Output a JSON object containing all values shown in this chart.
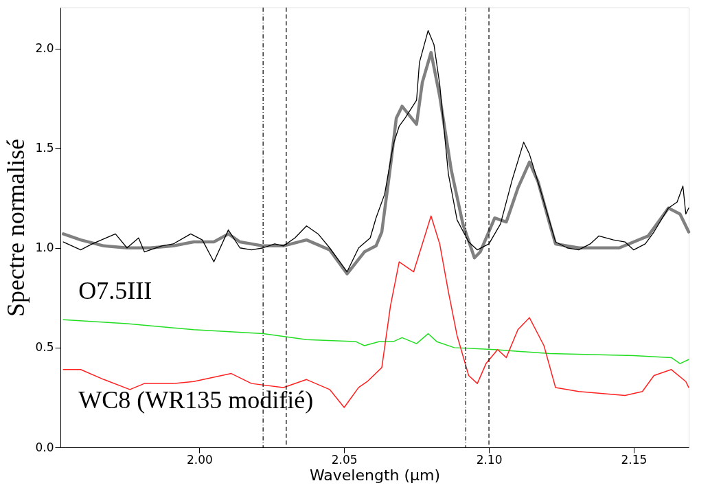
{
  "chart_data": {
    "type": "line",
    "xlabel": "Wavelength (µm)",
    "ylabel": "Spectre normalisé",
    "xlim": [
      1.952,
      2.169
    ],
    "ylim": [
      0,
      2.205
    ],
    "xticks": [
      {
        "value": 2.0,
        "label": "2.00"
      },
      2.05,
      {
        "value": 2.1,
        "label": "2.10"
      },
      2.15
    ],
    "yticks": [
      {
        "value": 0,
        "label": "0.0"
      },
      0.5,
      {
        "value": 1,
        "label": "1.0"
      },
      1.5,
      {
        "value": 2,
        "label": "2.0"
      }
    ],
    "grid": false,
    "line_style": "solid",
    "marker": "none",
    "series": [
      {
        "color": "#000000",
        "x": [
          1.953,
          1.959,
          1.963,
          1.971,
          1.975,
          1.979,
          1.981,
          1.987,
          1.991,
          1.997,
          2.001,
          2.005,
          2.01,
          2.014,
          2.018,
          2.022,
          2.026,
          2.029,
          2.033,
          2.037,
          2.041,
          2.045,
          2.049,
          2.051,
          2.055,
          2.059,
          2.061,
          2.064,
          2.067,
          2.069,
          2.071,
          2.075,
          2.076,
          2.079,
          2.081,
          2.083,
          2.086,
          2.089,
          2.093,
          2.096,
          2.1,
          2.104,
          2.108,
          2.112,
          2.114,
          2.118,
          2.123,
          2.127,
          2.131,
          2.135,
          2.138,
          2.143,
          2.147,
          2.15,
          2.154,
          2.157,
          2.162,
          2.165,
          2.167,
          2.168,
          2.169
        ],
        "values": [
          1.03,
          0.99,
          1.02,
          1.07,
          1.0,
          1.05,
          0.98,
          1.01,
          1.02,
          1.07,
          1.04,
          0.93,
          1.09,
          1.0,
          0.99,
          1.0,
          1.02,
          1.01,
          1.05,
          1.11,
          1.07,
          1.0,
          0.92,
          0.88,
          1.0,
          1.05,
          1.15,
          1.27,
          1.52,
          1.61,
          1.65,
          1.74,
          1.93,
          2.09,
          2.02,
          1.82,
          1.37,
          1.14,
          1.03,
          0.99,
          1.02,
          1.12,
          1.34,
          1.53,
          1.47,
          1.28,
          1.03,
          1.0,
          0.99,
          1.02,
          1.06,
          1.04,
          1.03,
          0.99,
          1.02,
          1.08,
          1.2,
          1.23,
          1.31,
          1.17,
          1.2
        ]
      },
      {
        "color": "#808080",
        "x": [
          1.953,
          1.959,
          1.967,
          1.975,
          1.983,
          1.991,
          1.998,
          2.005,
          2.01,
          2.014,
          2.022,
          2.029,
          2.037,
          2.045,
          2.051,
          2.057,
          2.061,
          2.063,
          2.066,
          2.068,
          2.07,
          2.075,
          2.077,
          2.08,
          2.083,
          2.087,
          2.091,
          2.095,
          2.097,
          2.102,
          2.106,
          2.11,
          2.114,
          2.117,
          2.121,
          2.123,
          2.131,
          2.145,
          2.155,
          2.162,
          2.166,
          2.169
        ],
        "values": [
          1.07,
          1.04,
          1.01,
          1.0,
          1.0,
          1.01,
          1.03,
          1.03,
          1.07,
          1.03,
          1.01,
          1.01,
          1.04,
          0.99,
          0.87,
          0.98,
          1.01,
          1.08,
          1.41,
          1.65,
          1.71,
          1.62,
          1.83,
          1.98,
          1.76,
          1.39,
          1.12,
          0.95,
          0.98,
          1.15,
          1.13,
          1.3,
          1.43,
          1.33,
          1.12,
          1.02,
          1.0,
          1.0,
          1.06,
          1.2,
          1.17,
          1.08
        ]
      },
      {
        "name": "O7.5III",
        "color": "#22dd22",
        "x": [
          1.953,
          1.975,
          1.998,
          2.022,
          2.037,
          2.054,
          2.057,
          2.062,
          2.067,
          2.07,
          2.075,
          2.079,
          2.082,
          2.088,
          2.102,
          2.121,
          2.15,
          2.163,
          2.166,
          2.169
        ],
        "values": [
          0.64,
          0.62,
          0.59,
          0.57,
          0.54,
          0.53,
          0.51,
          0.53,
          0.53,
          0.55,
          0.52,
          0.57,
          0.53,
          0.5,
          0.49,
          0.47,
          0.46,
          0.45,
          0.42,
          0.44
        ]
      },
      {
        "name": "WC8 (WR135 modifié)",
        "color": "#ff2020",
        "x": [
          1.953,
          1.959,
          1.967,
          1.976,
          1.981,
          1.991,
          1.998,
          2.011,
          2.018,
          2.029,
          2.037,
          2.045,
          2.05,
          2.055,
          2.058,
          2.063,
          2.066,
          2.069,
          2.074,
          2.077,
          2.08,
          2.083,
          2.086,
          2.089,
          2.093,
          2.096,
          2.099,
          2.103,
          2.106,
          2.11,
          2.114,
          2.119,
          2.123,
          2.131,
          2.147,
          2.153,
          2.157,
          2.163,
          2.168,
          2.169
        ],
        "values": [
          0.39,
          0.39,
          0.34,
          0.29,
          0.32,
          0.32,
          0.33,
          0.37,
          0.32,
          0.3,
          0.34,
          0.29,
          0.2,
          0.3,
          0.33,
          0.4,
          0.71,
          0.93,
          0.88,
          1.02,
          1.16,
          1.02,
          0.78,
          0.56,
          0.36,
          0.32,
          0.42,
          0.49,
          0.45,
          0.59,
          0.65,
          0.51,
          0.3,
          0.28,
          0.26,
          0.28,
          0.36,
          0.39,
          0.33,
          0.3
        ]
      }
    ],
    "ref_lines": [
      {
        "axis": "x",
        "value": 2.022,
        "color": "#000000",
        "line_style": "dashdot"
      },
      {
        "axis": "x",
        "value": 2.03,
        "color": "#000000",
        "line_style": "dashed"
      },
      {
        "axis": "x",
        "value": 2.092,
        "color": "#000000",
        "line_style": "dashdot"
      },
      {
        "axis": "x",
        "value": 2.1,
        "color": "#000000",
        "line_style": "dashed"
      }
    ]
  }
}
